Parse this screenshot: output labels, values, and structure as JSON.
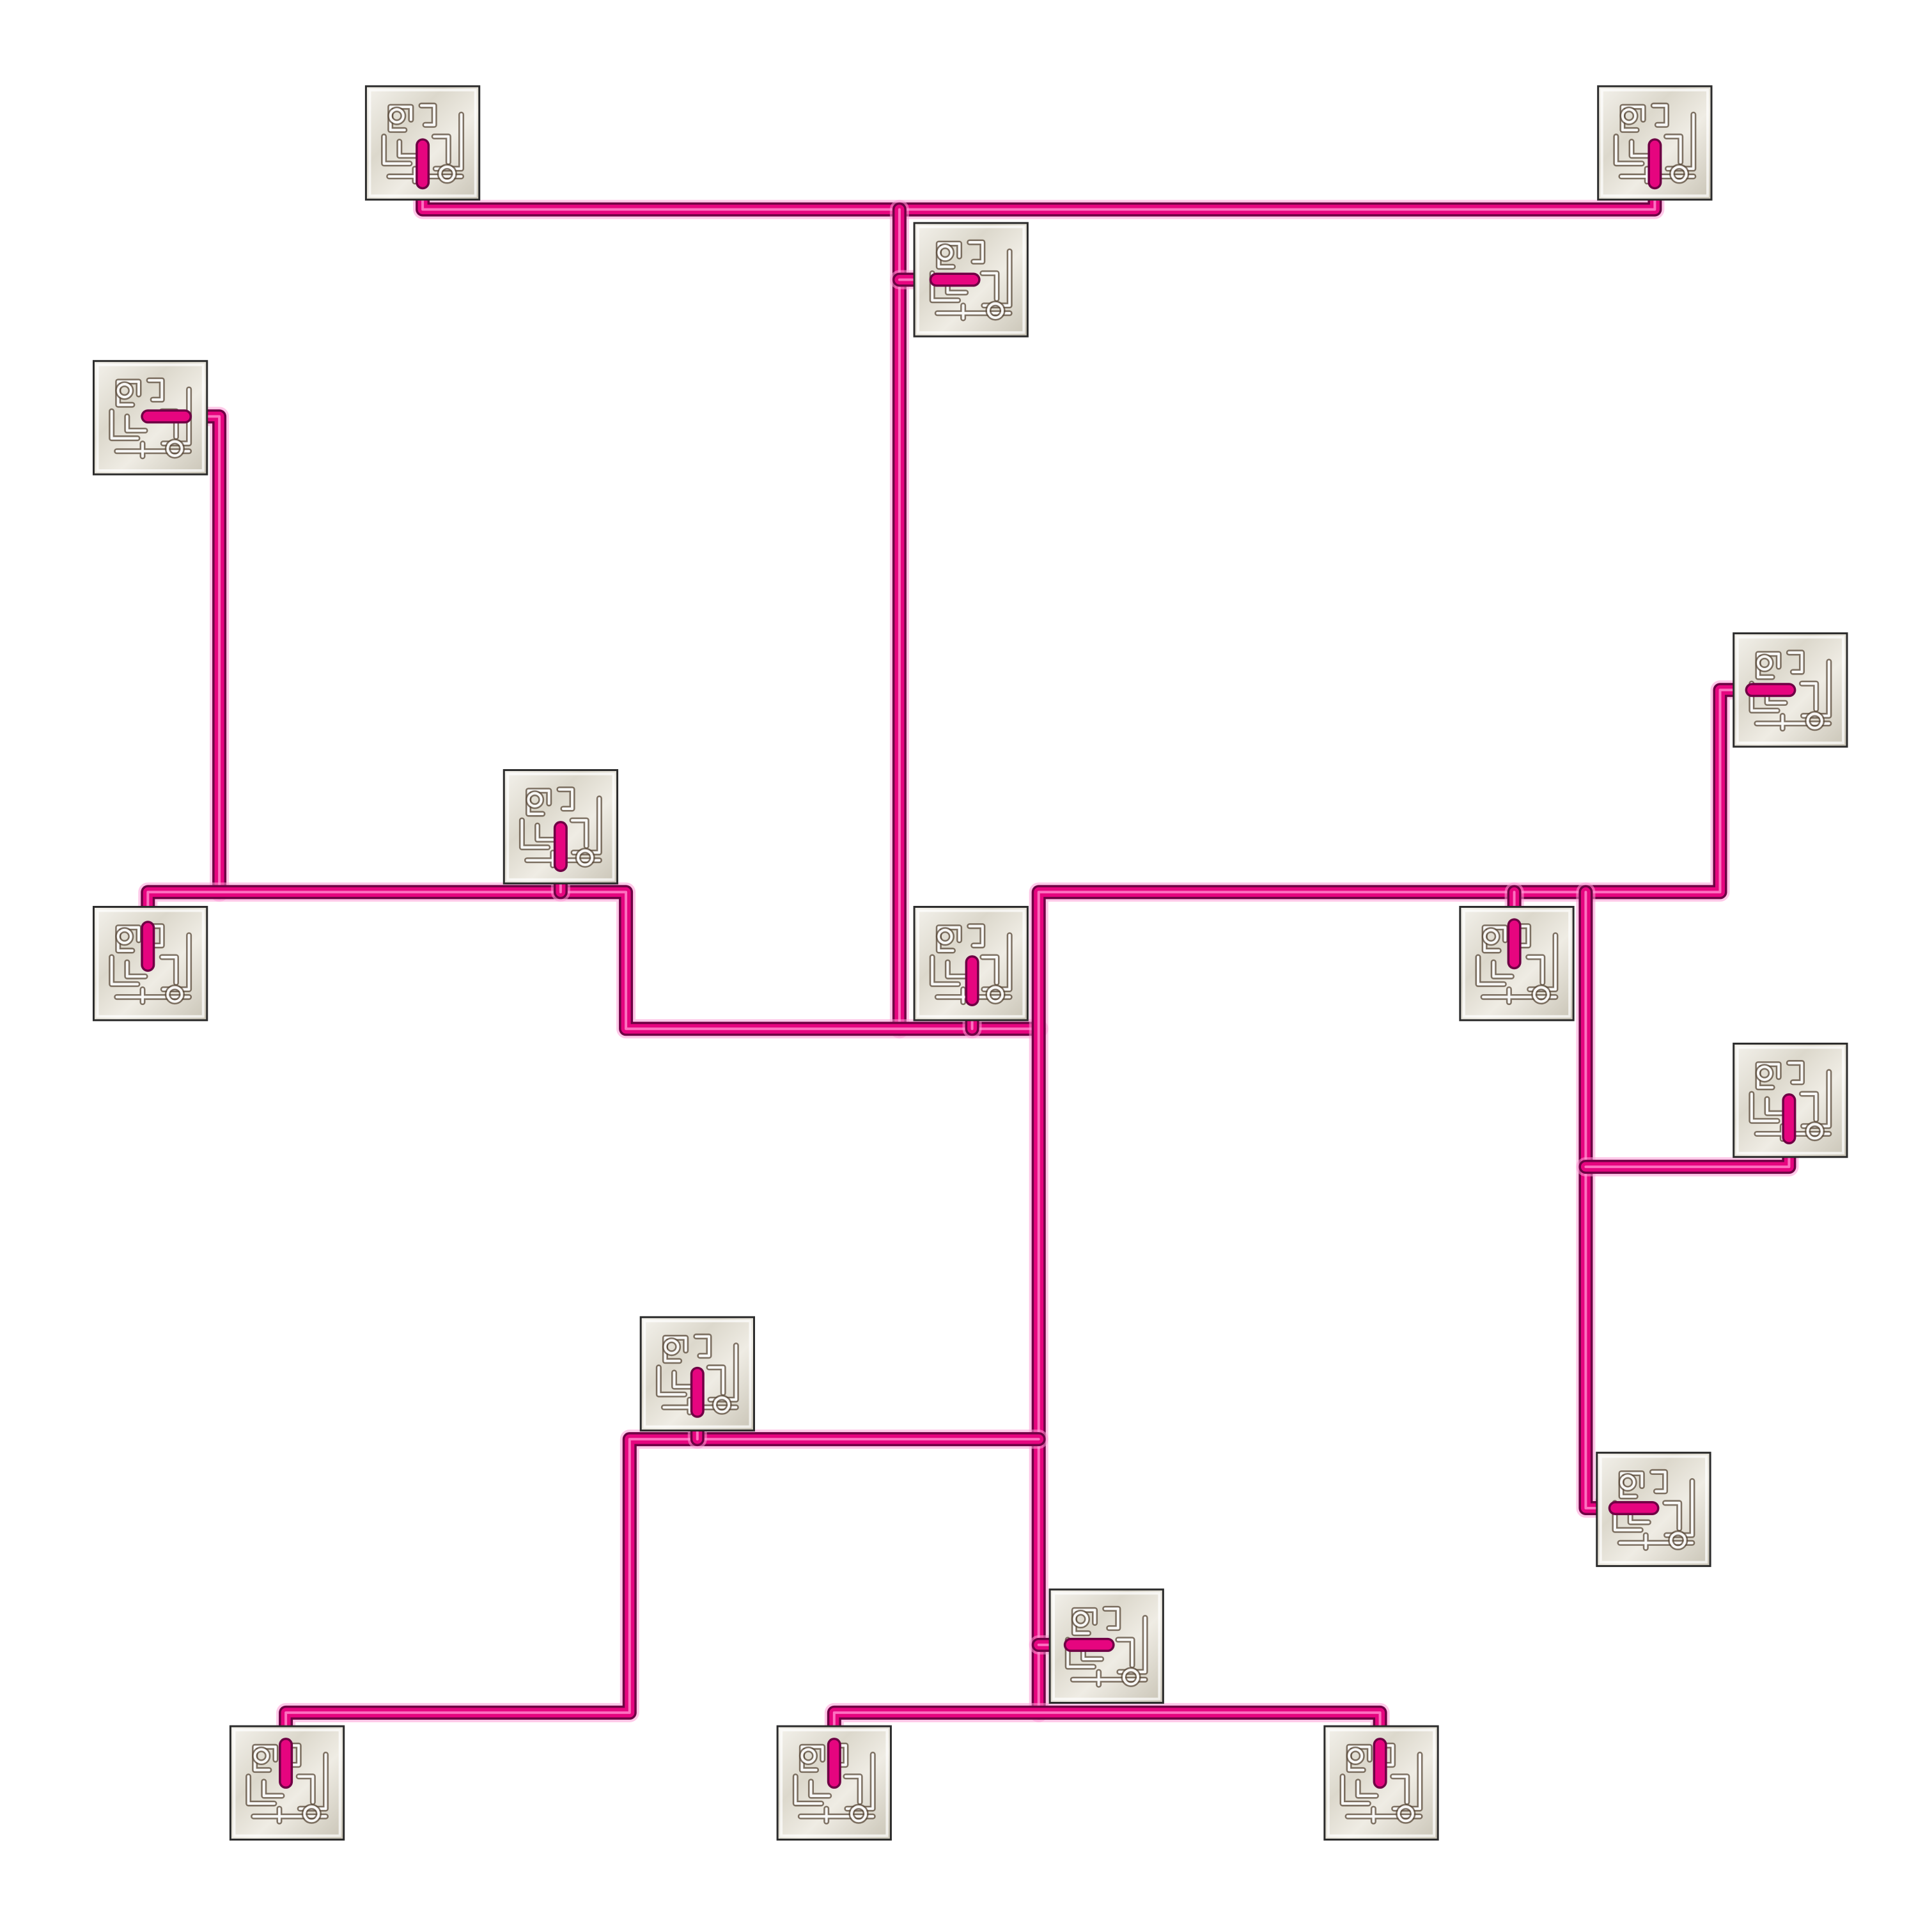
{
  "diagram": {
    "type": "tree-network",
    "colors": {
      "wire": "#e6057f",
      "wire_dark": "#6e0044",
      "wire_glow": "#ff9ad6",
      "node_fill": "#e9e6df",
      "node_border": "#2b2b2b",
      "background": "#ffffff"
    },
    "node_icon": "maze-tile-icon",
    "node_count": 17,
    "link_count": 16
  }
}
